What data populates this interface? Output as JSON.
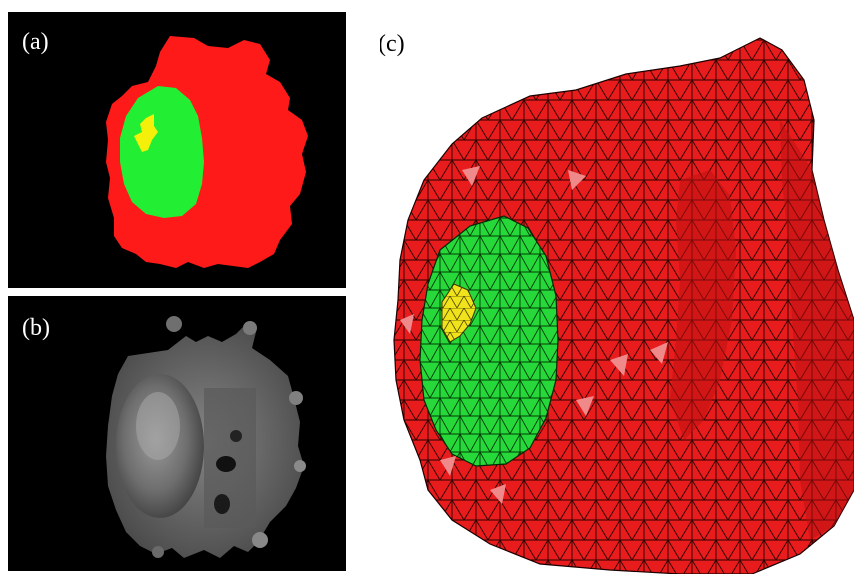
{
  "figure": {
    "panels": [
      {
        "id": "a",
        "label": "(a)"
      },
      {
        "id": "b",
        "label": "(b)"
      },
      {
        "id": "c",
        "label": "(c)"
      }
    ]
  },
  "colors": {
    "background_dark": "#000000",
    "region_red": "#ff1a1a",
    "region_green": "#22ee33",
    "region_yellow": "#f4f00a",
    "mesh_red": "#e81c1c",
    "mesh_highlight": "#f08a8a",
    "mesh_green": "#27d83a",
    "mesh_yellow": "#f0e21b"
  }
}
